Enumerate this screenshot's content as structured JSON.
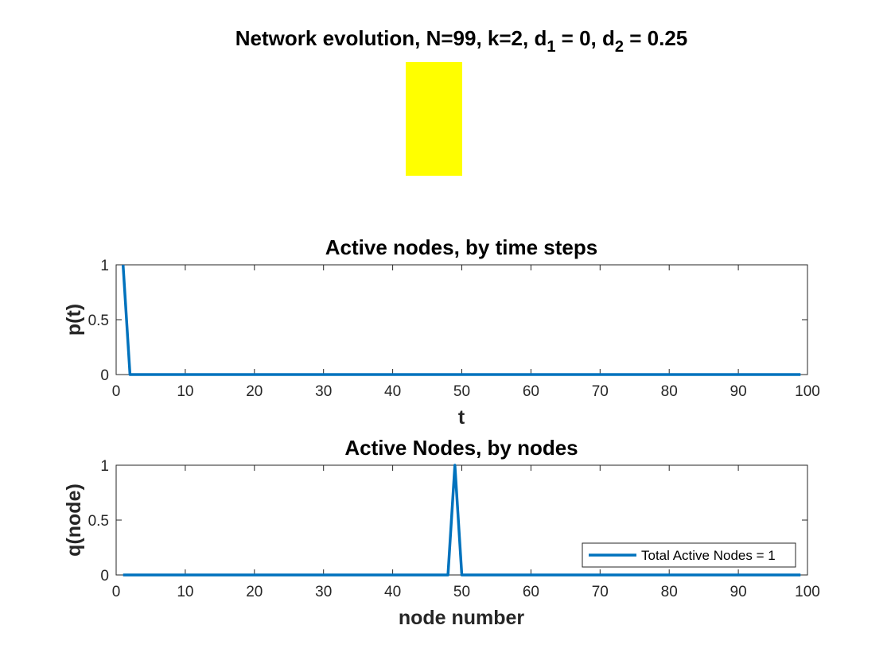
{
  "chart_data": [
    {
      "type": "heatmap",
      "title_main": "Network evolution, N=99, k=2, d",
      "title_sub1": "1",
      "title_mid": " = 0, d",
      "title_sub2": "2",
      "title_end": " = 0.25",
      "cells": [
        [
          1
        ]
      ],
      "colors": {
        "cell": "#ffff00"
      }
    },
    {
      "type": "line",
      "title": "Active nodes, by time steps",
      "xlabel": "t",
      "ylabel": "p(t)",
      "xlim": [
        0,
        100
      ],
      "ylim": [
        0,
        1
      ],
      "xticks": [
        "0",
        "10",
        "20",
        "30",
        "40",
        "50",
        "60",
        "70",
        "80",
        "90",
        "100"
      ],
      "yticks": [
        "0",
        "0.5",
        "1"
      ],
      "series": [
        {
          "x": [
            1,
            2,
            99
          ],
          "y": [
            1,
            0,
            0
          ],
          "color": "#0072bd"
        }
      ]
    },
    {
      "type": "line",
      "title": "Active Nodes, by nodes",
      "xlabel": "node number",
      "ylabel": "q(node)",
      "xlim": [
        0,
        100
      ],
      "ylim": [
        0,
        1
      ],
      "xticks": [
        "0",
        "10",
        "20",
        "30",
        "40",
        "50",
        "60",
        "70",
        "80",
        "90",
        "100"
      ],
      "yticks": [
        "0",
        "0.5",
        "1"
      ],
      "legend": {
        "position": "bottom-right",
        "entries": [
          "Total Active Nodes = 1"
        ]
      },
      "series": [
        {
          "name": "Total Active Nodes = 1",
          "x": [
            1,
            48,
            49,
            50,
            99
          ],
          "y": [
            0,
            0,
            1,
            0,
            0
          ],
          "color": "#0072bd"
        }
      ]
    }
  ]
}
